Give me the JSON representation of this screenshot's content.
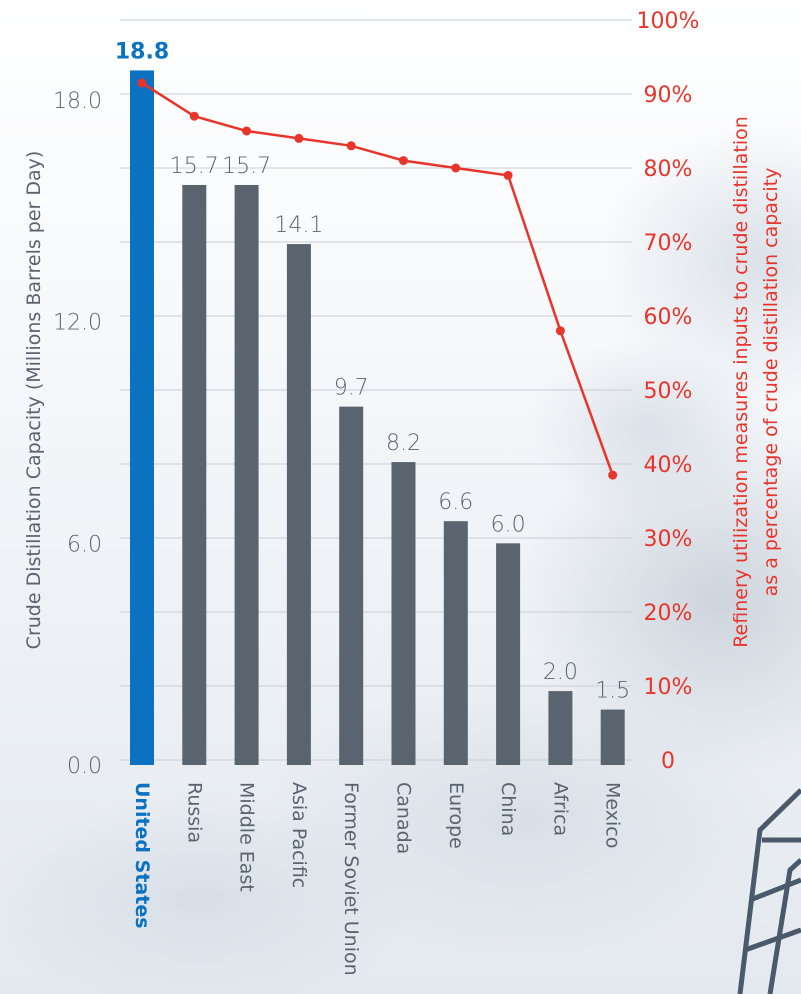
{
  "chart_data": {
    "type": "bar",
    "categories": [
      "United States",
      "Russia",
      "Middle East",
      "Asia Pacific",
      "Former Soviet Union",
      "Canada",
      "Europe",
      "China",
      "Africa",
      "Mexico"
    ],
    "series": [
      {
        "values": [
          18.8,
          15.7,
          15.7,
          14.1,
          9.7,
          8.2,
          6.6,
          6.0,
          2.0,
          1.5
        ],
        "axis": "left",
        "kind": "bar"
      },
      {
        "values": [
          91.5,
          87,
          85,
          84,
          83,
          81,
          80,
          79,
          58,
          38.5
        ],
        "axis": "right",
        "kind": "line"
      }
    ],
    "data_labels": [
      "18.8",
      "15.7",
      "15.7",
      "14.1",
      "9.7",
      "8.2",
      "6.6",
      "6.0",
      "2.0",
      "1.5"
    ],
    "ylabel": "Crude Distillation Capacity (Millions Barrels per Day)",
    "y2label_line1": "Refinery utilization measures inputs to crude distillation",
    "y2label_line2": "as a percentage of crude distillation capacity",
    "ylim": [
      0,
      18.8
    ],
    "y2lim": [
      0,
      100
    ],
    "yticks": [
      "0.0",
      "6.0",
      "12.0",
      "18.0"
    ],
    "y2ticks": [
      "0",
      "10%",
      "20%",
      "30%",
      "40%",
      "50%",
      "60%",
      "70%",
      "80%",
      "90%",
      "100%"
    ],
    "grid": true,
    "highlight_index": 0,
    "colors": {
      "highlight_bar": "#0a72c0",
      "bar": "#59646e",
      "line": "#e8352c",
      "grid": "#c9ced4",
      "text": "#5a6470"
    }
  }
}
